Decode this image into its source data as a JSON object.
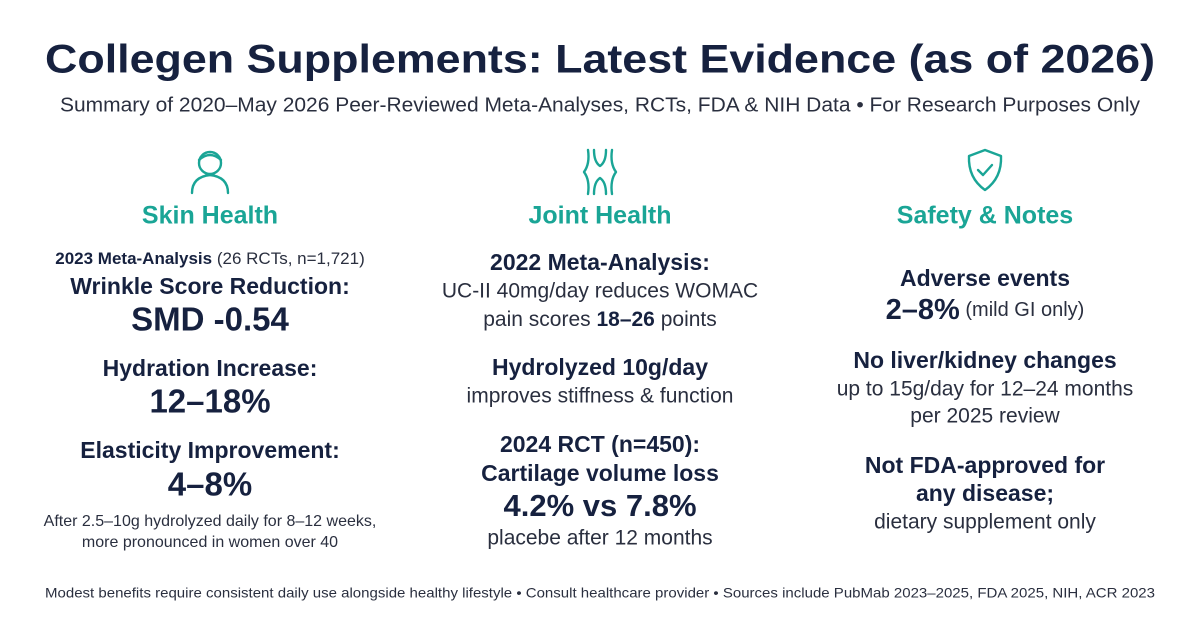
{
  "header": {
    "title": "Collegen Supplements: Latest Evidence (as of 2026)",
    "subtitle": "Summary of 2020–May 2026 Peer-Reviewed Meta-Analyses, RCTs, FDA & NIH Data • For Research Purposes Only"
  },
  "columns": [
    {
      "heading": "Skin Health",
      "lines": [
        [
          "2023 Meta-Analysis",
          " (26 RCTs, n=1,721)"
        ],
        [
          "Wrinkle Score Reduction:"
        ],
        [
          "SMD -0.54"
        ],
        [
          "Hydration Increase:"
        ],
        [
          "12–18%"
        ],
        [
          "Elasticity Improvement:"
        ],
        [
          "4–8%"
        ],
        [
          "After 2.5–10g hydrolyzed daily for 8–12 weeks,"
        ],
        [
          "more pronounced in women over 40"
        ]
      ]
    },
    {
      "heading": "Joint Health",
      "lines": [
        [
          "2022 Meta-Analysis:"
        ],
        [
          "UC-II 40mg/day reduces WOMAC"
        ],
        [
          "pain scores ",
          "18–26",
          " points"
        ],
        [
          "Hydrolyzed 10g/day"
        ],
        [
          "improves stiffness & function"
        ],
        [
          "2024 RCT (n=450):"
        ],
        [
          "Cartilage volume loss"
        ],
        [
          "4.2% vs 7.8%"
        ],
        [
          "placebe after 12 months"
        ]
      ]
    },
    {
      "heading": "Safety & Notes",
      "lines": [
        [
          "Adverse events"
        ],
        [
          "2–8%",
          " (mild GI only)"
        ],
        [
          "No liver/kidney changes"
        ],
        [
          "up to 15g/day for 12–24 months"
        ],
        [
          "per 2025 review"
        ],
        [
          "Not FDA-approved for"
        ],
        [
          "any disease;"
        ],
        [
          "dietary supplement only"
        ]
      ]
    }
  ],
  "footer": "Modest benefits require consistent daily use alongside healthy lifestyle • Consult healthcare provider • Sources include PubMab 2023–2025, FDA 2025, NIH, ACR 2023"
}
